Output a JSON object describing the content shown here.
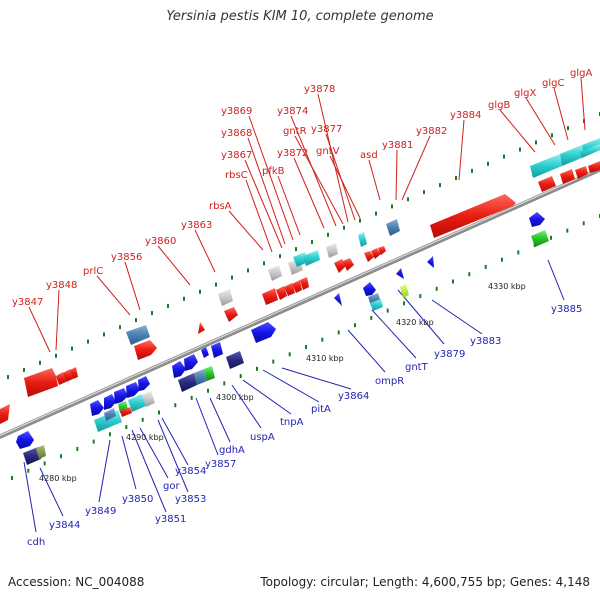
{
  "title": "Yersinia pestis KIM 10, complete genome",
  "footer": {
    "accession": "Accession: NC_004088",
    "summary": "Topology: circular; Length: 4,600,755 bp; Genes: 4,148"
  },
  "colors": {
    "top_label": "#d0201c",
    "bottom_label": "#2323b4",
    "backbone": "#8c8c8c",
    "tick": "#1e7a1e"
  },
  "scale_labels": [
    {
      "text": "4280 kbp",
      "kbp": 4280
    },
    {
      "text": "4290 kbp",
      "kbp": 4290
    },
    {
      "text": "4300 kbp",
      "kbp": 4300
    },
    {
      "text": "4310 kbp",
      "kbp": 4310
    },
    {
      "text": "4320 kbp",
      "kbp": 4320
    },
    {
      "text": "4330 kbp",
      "kbp": 4330
    }
  ],
  "genes_forward": [
    "y3847",
    "y3848",
    "prlC",
    "y3856",
    "y3860",
    "y3863",
    "rbsA",
    "rbsC",
    "y3867",
    "y3868",
    "y3869",
    "pfkB",
    "y3872",
    "y3874",
    "gntR",
    "y3878",
    "y3877",
    "gntV",
    "asd",
    "y3881",
    "y3882",
    "y3884",
    "glgB",
    "glgX",
    "glgC",
    "glgA"
  ],
  "genes_reverse": [
    "cdh",
    "y3844",
    "y3849",
    "y3850",
    "y3851",
    "gor",
    "y3853",
    "y3854",
    "y3857",
    "gdhA",
    "uspA",
    "tnpA",
    "pitA",
    "y3864",
    "ompR",
    "gntT",
    "y3879",
    "y3883",
    "y3885"
  ]
}
